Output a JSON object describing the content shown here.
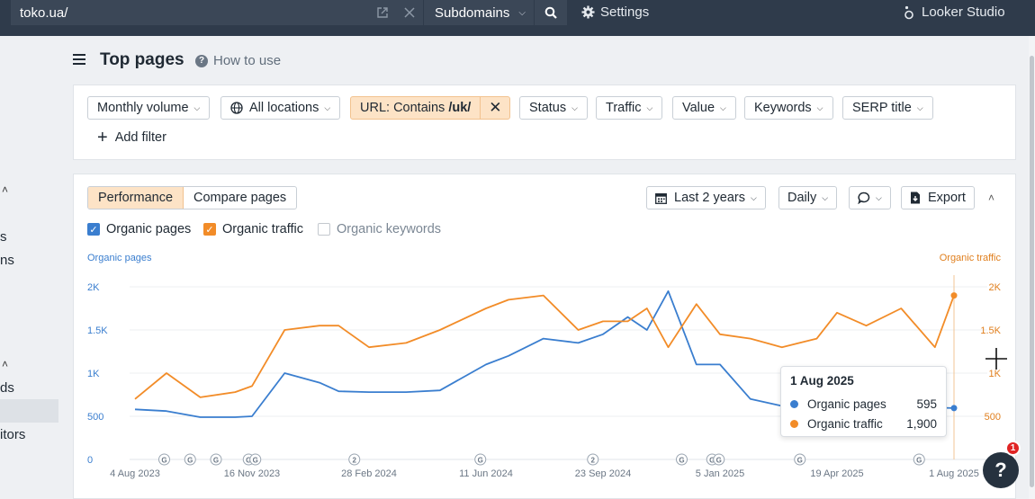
{
  "topbar": {
    "url": "toko.ua/",
    "mode": "Subdomains",
    "settings_label": "Settings",
    "looker_label": "Looker Studio"
  },
  "left_nav": {
    "fragments": [
      "s",
      "ns",
      "ds",
      "itors"
    ]
  },
  "header": {
    "title": "Top pages",
    "how_to_use": "How to use"
  },
  "filters": {
    "monthly_volume": "Monthly volume",
    "all_locations": "All locations",
    "url_filter_prefix": "URL: Contains ",
    "url_filter_value": "/uk/",
    "status": "Status",
    "traffic": "Traffic",
    "value": "Value",
    "keywords": "Keywords",
    "serp_title": "SERP title",
    "add_filter": "Add filter"
  },
  "chart_panel": {
    "tab_performance": "Performance",
    "tab_compare": "Compare pages",
    "date_range": "Last 2 years",
    "granularity": "Daily",
    "export": "Export",
    "legend": [
      {
        "label": "Organic pages",
        "checked": true,
        "color": "#3a7ecf"
      },
      {
        "label": "Organic traffic",
        "checked": true,
        "color": "#f28c28"
      },
      {
        "label": "Organic keywords",
        "checked": false,
        "color": "#9aa5b1"
      }
    ],
    "axis_left_title": "Organic pages",
    "axis_right_title": "Organic traffic"
  },
  "chart_data": {
    "type": "line",
    "x": [
      "2023-08-04",
      "2023-09-01",
      "2023-10-01",
      "2023-11-01",
      "2023-11-16",
      "2023-12-15",
      "2024-01-15",
      "2024-02-01",
      "2024-02-28",
      "2024-04-01",
      "2024-05-01",
      "2024-06-11",
      "2024-07-01",
      "2024-08-01",
      "2024-09-01",
      "2024-09-23",
      "2024-10-15",
      "2024-11-01",
      "2024-11-20",
      "2024-12-15",
      "2025-01-05",
      "2025-02-01",
      "2025-03-01",
      "2025-04-01",
      "2025-04-19",
      "2025-05-15",
      "2025-06-15",
      "2025-07-15",
      "2025-08-01"
    ],
    "series": [
      {
        "name": "Organic pages",
        "axis": "left",
        "values": [
          580,
          560,
          490,
          490,
          500,
          1000,
          890,
          790,
          780,
          780,
          800,
          1100,
          1200,
          1400,
          1350,
          1450,
          1650,
          1500,
          1950,
          1100,
          1100,
          700,
          620,
          620,
          620,
          600,
          600,
          600,
          595
        ]
      },
      {
        "name": "Organic traffic",
        "axis": "right",
        "values": [
          700,
          1000,
          720,
          780,
          850,
          1500,
          1550,
          1550,
          1300,
          1350,
          1500,
          1750,
          1850,
          1900,
          1500,
          1600,
          1600,
          1750,
          1300,
          1800,
          1450,
          1400,
          1300,
          1400,
          1700,
          1550,
          1750,
          1300,
          1900
        ]
      }
    ],
    "x_ticks": [
      "4 Aug 2023",
      "16 Nov 2023",
      "28 Feb 2024",
      "11 Jun 2024",
      "23 Sep 2024",
      "5 Jan 2025",
      "19 Apr 2025",
      "1 Aug 2025"
    ],
    "y_left_ticks": [
      "0",
      "500",
      "1K",
      "1.5K",
      "2K"
    ],
    "y_right_ticks": [
      "500",
      "1K",
      "1.5K",
      "2K"
    ],
    "y_left_range": [
      0,
      2000
    ],
    "y_right_range": [
      300,
      2000
    ],
    "annotations": [
      "G",
      "G",
      "G",
      "G",
      "G",
      "2",
      "G",
      "2",
      "G",
      "G",
      "G",
      "G",
      "G"
    ],
    "grid": true
  },
  "tooltip": {
    "date": "1 Aug 2025",
    "rows": [
      {
        "name": "Organic pages",
        "value": "595",
        "color": "#3a7ecf"
      },
      {
        "name": "Organic traffic",
        "value": "1,900",
        "color": "#f28c28"
      }
    ]
  },
  "help": {
    "label": "?",
    "badge": "1"
  }
}
